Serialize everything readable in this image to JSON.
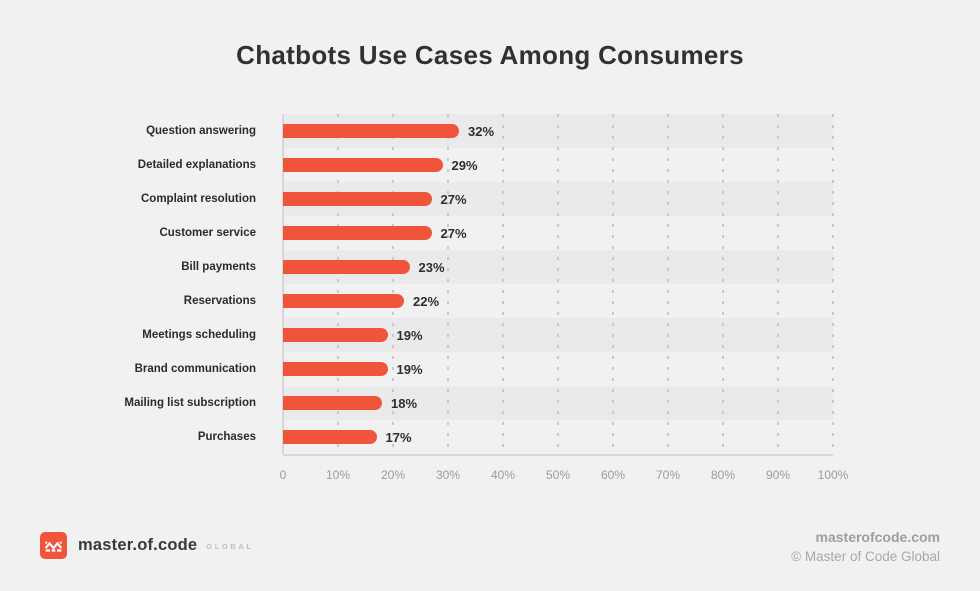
{
  "page": {
    "title": "Chatbots Use Cases Among Consumers"
  },
  "chart_data": {
    "type": "bar",
    "orientation": "horizontal",
    "title": "Chatbots Use Cases Among Consumers",
    "categories": [
      "Question answering",
      "Detailed explanations",
      "Complaint resolution",
      "Customer service",
      "Bill payments",
      "Reservations",
      "Meetings scheduling",
      "Brand communication",
      "Mailing list subscription",
      "Purchases"
    ],
    "values": [
      32,
      29,
      27,
      27,
      23,
      22,
      19,
      19,
      18,
      17
    ],
    "value_labels": [
      "32%",
      "29%",
      "27%",
      "27%",
      "23%",
      "22%",
      "19%",
      "19%",
      "18%",
      "17%"
    ],
    "x_ticks": [
      "0",
      "10%",
      "20%",
      "30%",
      "40%",
      "50%",
      "60%",
      "70%",
      "80%",
      "90%",
      "100%"
    ],
    "xlim": [
      0,
      100
    ],
    "xlabel": "",
    "ylabel": "",
    "grid": "vertical-dashed",
    "legend": false,
    "row_striping": true
  },
  "footer": {
    "brand": "master.of.code",
    "brand_suffix": "GLOBAL",
    "website": "masterofcode.com",
    "copyright": "© Master of Code Global"
  },
  "colors": {
    "background": "#F1F1F2",
    "accent": "#F0553C",
    "stripe": "#EAEAEC",
    "grid_line": "#C9C9CC",
    "axis_line": "#D8D8DA",
    "title_text": "#313135",
    "category_text": "#2B2B2D",
    "value_text": "#2E2E30",
    "axis_text": "#9B9B9E",
    "brand_text": "#333B42",
    "brand_suffix_text": "#B9C0C5",
    "footer_text": "#9D9EA1",
    "copyright_text": "#A7A8AB"
  }
}
